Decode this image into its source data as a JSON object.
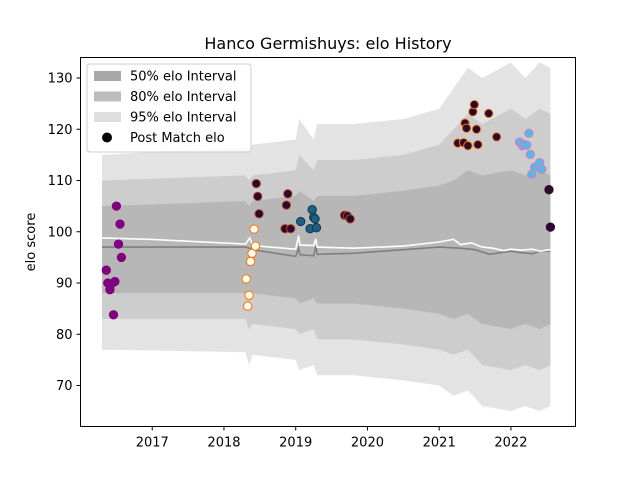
{
  "chart_data": {
    "type": "scatter",
    "title": "Hanco Germishuys: elo History",
    "xlabel": "",
    "ylabel": "elo score",
    "xlim": [
      2016.0,
      2022.9
    ],
    "ylim": [
      62,
      134
    ],
    "x_ticks": [
      2017,
      2018,
      2019,
      2020,
      2021,
      2022
    ],
    "x_tick_labels": [
      "2017",
      "2018",
      "2019",
      "2020",
      "2021",
      "2022"
    ],
    "y_ticks": [
      70,
      80,
      90,
      100,
      110,
      120,
      130
    ],
    "y_tick_labels": [
      "70",
      "80",
      "90",
      "100",
      "110",
      "120",
      "130"
    ],
    "grid": false,
    "legend_position": "top-left",
    "legend": [
      {
        "label": "50% elo Interval",
        "kind": "band",
        "color": "#a9a9a9"
      },
      {
        "label": "80% elo Interval",
        "kind": "band",
        "color": "#bdbdbd"
      },
      {
        "label": "95% elo Interval",
        "kind": "band",
        "color": "#dedede"
      },
      {
        "label": "Post Match elo",
        "kind": "marker",
        "color": "#000000"
      }
    ],
    "bands": {
      "x": [
        2016.3,
        2018.3,
        2018.35,
        2018.4,
        2019.0,
        2019.05,
        2019.25,
        2019.3,
        2019.8,
        2020.5,
        2021.0,
        2021.2,
        2021.4,
        2021.6,
        2022.0,
        2022.2,
        2022.4,
        2022.55
      ],
      "ci95_upper": [
        115,
        116.5,
        116,
        117,
        118,
        122,
        118,
        121,
        121,
        122,
        124,
        128,
        132,
        130,
        133,
        130,
        133,
        132
      ],
      "ci95_lower": [
        77,
        76.5,
        74,
        76,
        75,
        73,
        74,
        72,
        72,
        71,
        70,
        68,
        69,
        66,
        65,
        66,
        65,
        66
      ],
      "ci80_upper": [
        110,
        111,
        110,
        111,
        112,
        115,
        112,
        114,
        114,
        115,
        117,
        120,
        123,
        121,
        124,
        122,
        124,
        123
      ],
      "ci80_lower": [
        83,
        83,
        81,
        82,
        81,
        80,
        81,
        79,
        79,
        78,
        77,
        76,
        77,
        74,
        73,
        74,
        73,
        74
      ],
      "ci50_upper": [
        105,
        106,
        105,
        106,
        107,
        108,
        106,
        107,
        107,
        108,
        109,
        110,
        112,
        111,
        112,
        111,
        112,
        111
      ],
      "ci50_lower": [
        88,
        88,
        87,
        88,
        87,
        86,
        87,
        86,
        86,
        85,
        84,
        83,
        84,
        82,
        81,
        82,
        81,
        82
      ]
    },
    "median_line": {
      "color": "#7f7f7f",
      "x": [
        2016.3,
        2018.3,
        2018.36,
        2018.4,
        2019.0,
        2019.04,
        2019.06,
        2019.25,
        2019.28,
        2019.3,
        2019.8,
        2020.5,
        2021.0,
        2021.3,
        2021.5,
        2021.7,
        2022.0,
        2022.1,
        2022.3,
        2022.4,
        2022.55
      ],
      "y": [
        97,
        97,
        96.8,
        96.5,
        95.2,
        96.8,
        95.5,
        95.3,
        97.2,
        95.6,
        95.8,
        96.5,
        97,
        96.8,
        96.5,
        95.6,
        96.2,
        96.0,
        95.7,
        96.2,
        96.2
      ]
    },
    "mean_line": {
      "color": "#ffffff",
      "x": [
        2016.3,
        2017.0,
        2018.0,
        2018.3,
        2018.36,
        2018.4,
        2019.0,
        2019.04,
        2019.06,
        2019.25,
        2019.28,
        2019.3,
        2019.8,
        2020.5,
        2021.0,
        2021.2,
        2021.3,
        2021.45,
        2021.6,
        2021.75,
        2021.9,
        2022.0,
        2022.15,
        2022.3,
        2022.4,
        2022.55
      ],
      "y": [
        98.8,
        98.5,
        97.8,
        97.6,
        98.8,
        97.3,
        96.6,
        99.2,
        97.4,
        97.3,
        98.6,
        97.0,
        96.8,
        97.2,
        98.0,
        98.5,
        97.5,
        97.8,
        97.0,
        96.8,
        96.3,
        96.6,
        96.4,
        96.6,
        96.2,
        96.5
      ]
    },
    "series": [
      {
        "color": "#800080",
        "edge": "#800080",
        "filled": true,
        "x": [
          2016.36,
          2016.38,
          2016.41,
          2016.43,
          2016.46,
          2016.48,
          2016.5,
          2016.53,
          2016.55,
          2016.57
        ],
        "y": [
          92.5,
          90,
          88.7,
          89.8,
          83.8,
          90.3,
          105,
          97.6,
          101.5,
          95
        ]
      },
      {
        "color": "#ffffff",
        "edge": "#ff7f0e",
        "filled": false,
        "x": [
          2018.31,
          2018.33,
          2018.35,
          2018.37,
          2018.39,
          2018.42,
          2018.44
        ],
        "y": [
          90.8,
          85.5,
          87.6,
          94.2,
          95.8,
          100.5,
          97.2
        ]
      },
      {
        "color": "#2b0a2e",
        "edge": "#c04a20",
        "filled": true,
        "x": [
          2018.45,
          2018.47,
          2018.49,
          2018.85,
          2018.87,
          2018.89,
          2018.93
        ],
        "y": [
          109.4,
          106.9,
          103.5,
          100.6,
          105.2,
          107.4,
          100.6
        ]
      },
      {
        "color": "#1f5f7f",
        "edge": "#0b3550",
        "filled": true,
        "x": [
          2019.07,
          2019.2,
          2019.23,
          2019.25,
          2019.27,
          2019.29
        ],
        "y": [
          102,
          100.6,
          104.3,
          102.8,
          102.5,
          100.8
        ]
      },
      {
        "color": "#2b0a2e",
        "edge": "#c04a20",
        "filled": true,
        "x": [
          2019.68,
          2019.72,
          2019.76
        ],
        "y": [
          103.2,
          103.1,
          102.5
        ]
      },
      {
        "color": "#2b0a2e",
        "edge": "#ff7f0e",
        "filled": true,
        "x": [
          2021.26,
          2021.34,
          2021.36,
          2021.38,
          2021.4,
          2021.47,
          2021.49,
          2021.52,
          2021.54,
          2021.69,
          2021.8
        ],
        "y": [
          117.3,
          117.4,
          121.2,
          120.2,
          116.8,
          123.4,
          124.8,
          120,
          117,
          123.1,
          118.5
        ]
      },
      {
        "color": "#57b8e6",
        "edge": "#e377c2",
        "filled": true,
        "x": [
          2022.12,
          2022.16,
          2022.18,
          2022.22,
          2022.25,
          2022.27,
          2022.29,
          2022.33,
          2022.4,
          2022.43
        ],
        "y": [
          117.5,
          116.8,
          117.1,
          116.9,
          119.2,
          115.1,
          111.2,
          112.6,
          113.5,
          112.2
        ]
      },
      {
        "color": "#2b0a2e",
        "edge": "#2b0a2e",
        "filled": true,
        "x": [
          2022.53,
          2022.55
        ],
        "y": [
          108.2,
          100.9
        ]
      }
    ]
  }
}
